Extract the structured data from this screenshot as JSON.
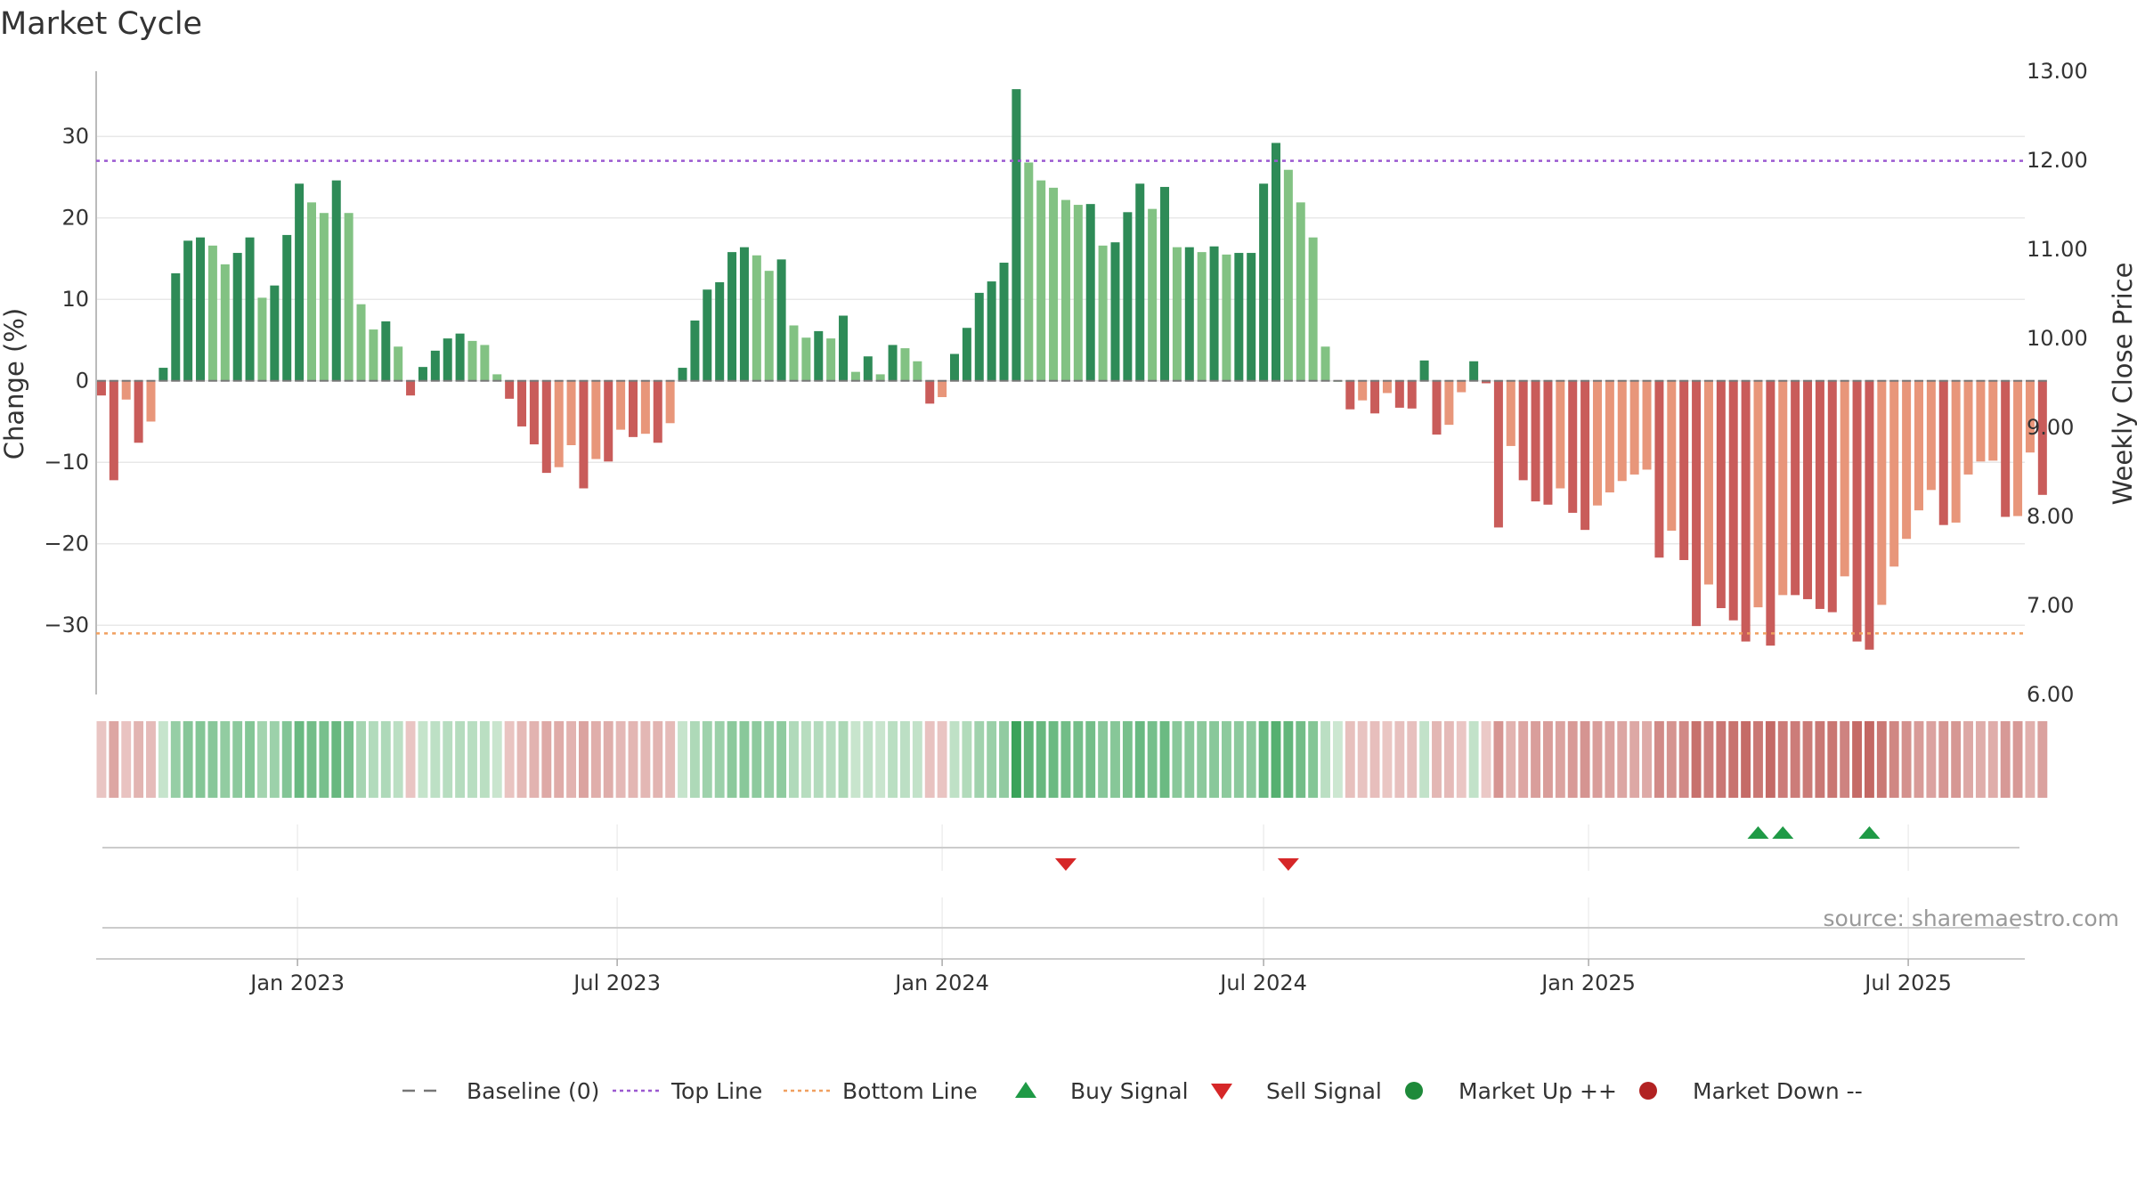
{
  "chart_data": {
    "type": "bar",
    "title": "Market Cycle",
    "ylabel": "Change (%)",
    "y2label": "Weekly Close Price",
    "ylim": [
      -38.5,
      38
    ],
    "y2lim": [
      6.0,
      13.0
    ],
    "yticks": [
      -30,
      -20,
      -10,
      0,
      10,
      20,
      30
    ],
    "y2ticks": [
      "6.00",
      "7.00",
      "8.00",
      "9.00",
      "10.00",
      "11.00",
      "12.00",
      "13.00"
    ],
    "x_start": "2022-09-12",
    "x_step_days": 7,
    "xlim": [
      "2022-09-09",
      "2025-09-05"
    ],
    "xticks": [
      {
        "date": "2023-01-01",
        "label": "Jan 2023"
      },
      {
        "date": "2023-07-01",
        "label": "Jul 2023"
      },
      {
        "date": "2024-01-01",
        "label": "Jan 2024"
      },
      {
        "date": "2024-07-01",
        "label": "Jul 2024"
      },
      {
        "date": "2025-01-01",
        "label": "Jan 2025"
      },
      {
        "date": "2025-07-01",
        "label": "Jul 2025"
      }
    ],
    "top_line": 27,
    "bottom_line": -31,
    "grid": true,
    "values": [
      -1.8,
      -12.2,
      -2.3,
      -7.6,
      -5.0,
      1.6,
      13.2,
      17.2,
      17.6,
      16.6,
      14.3,
      15.7,
      17.6,
      10.2,
      11.7,
      17.9,
      24.2,
      21.9,
      20.6,
      24.6,
      20.6,
      9.4,
      6.3,
      7.3,
      4.2,
      -1.8,
      1.7,
      3.7,
      5.2,
      5.8,
      4.9,
      4.4,
      0.8,
      -2.2,
      -5.6,
      -7.8,
      -11.3,
      -10.6,
      -7.9,
      -13.2,
      -9.6,
      -9.9,
      -6.0,
      -6.9,
      -6.5,
      -7.6,
      -5.2,
      1.6,
      7.4,
      11.2,
      12.1,
      15.8,
      16.4,
      15.4,
      13.5,
      14.9,
      6.8,
      5.3,
      6.1,
      5.2,
      8.0,
      1.1,
      3.0,
      0.8,
      4.4,
      4.0,
      2.4,
      -2.8,
      -2.0,
      3.3,
      6.5,
      10.8,
      12.2,
      14.5,
      35.8,
      26.8,
      24.6,
      23.7,
      22.2,
      21.6,
      21.7,
      16.6,
      17.0,
      20.7,
      24.2,
      21.1,
      23.8,
      16.4,
      16.4,
      15.8,
      16.5,
      15.5,
      15.7,
      15.7,
      24.2,
      29.2,
      25.9,
      21.9,
      17.6,
      4.2,
      0.0,
      -3.5,
      -2.4,
      -4.0,
      -1.5,
      -3.3,
      -3.4,
      2.5,
      -6.6,
      -5.4,
      -1.4,
      2.4,
      -0.3,
      -18.0,
      -8.0,
      -12.2,
      -14.8,
      -15.2,
      -13.2,
      -16.2,
      -18.3,
      -15.3,
      -13.7,
      -12.3,
      -11.5,
      -10.9,
      -21.7,
      -18.4,
      -22.0,
      -30.1,
      -25.0,
      -27.9,
      -29.4,
      -32.0,
      -27.8,
      -32.5,
      -26.3,
      -26.3,
      -26.8,
      -28.0,
      -28.4,
      -24.0,
      -32.0,
      -33.0,
      -27.5,
      -22.8,
      -19.4,
      -15.9,
      -13.4,
      -17.7,
      -17.4,
      -11.5,
      -9.9,
      -9.8,
      -16.7,
      -16.6,
      -8.8,
      -14.0
    ],
    "sell_signals": [
      "2024-03-11",
      "2024-07-15"
    ],
    "buy_signals": [
      "2025-04-07",
      "2025-04-21",
      "2025-06-09"
    ],
    "legend": {
      "placement": "bottom-center",
      "entries": [
        {
          "label": "Baseline (0)",
          "marker": "dash",
          "color": "#777777"
        },
        {
          "label": "Top Line",
          "marker": "dotted",
          "color": "#9b59d0"
        },
        {
          "label": "Bottom Line",
          "marker": "dotted",
          "color": "#f0a060"
        },
        {
          "label": "Buy Signal",
          "marker": "triangle-up",
          "color": "#1f9a46"
        },
        {
          "label": "Sell Signal",
          "marker": "triangle-down",
          "color": "#d62728"
        },
        {
          "label": "Market Up ++",
          "marker": "circle",
          "color": "#1e8a3a"
        },
        {
          "label": "Market Down --",
          "marker": "circle",
          "color": "#b22222"
        }
      ]
    },
    "source": "source: sharemaestro.com",
    "colors": {
      "pos_dark": "#2e8b57",
      "pos_light": "#82c283",
      "neg_dark": "#c95c5a",
      "neg_light": "#e8967a",
      "grid": "#e8e8e8",
      "axis": "#bbbbbb",
      "baseline": "#777777"
    }
  }
}
